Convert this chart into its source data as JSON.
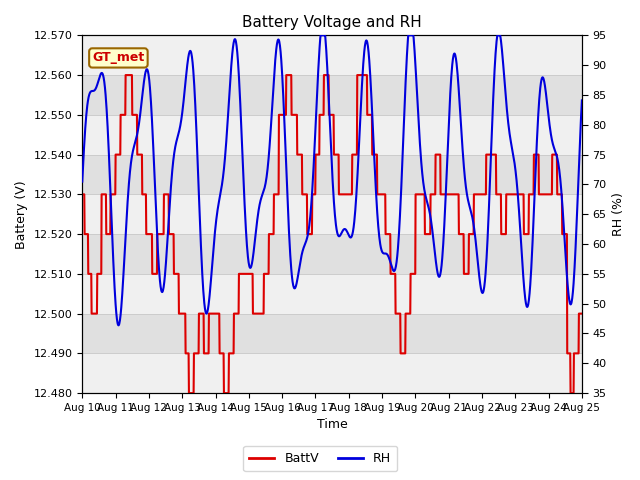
{
  "title": "Battery Voltage and RH",
  "xlabel": "Time",
  "ylabel_left": "Battery (V)",
  "ylabel_right": "RH (%)",
  "annotation_text": "GT_met",
  "annotation_color": "#cc0000",
  "annotation_bg": "#ffffcc",
  "annotation_border": "#996600",
  "ylim_left": [
    12.48,
    12.57
  ],
  "ylim_right": [
    35,
    95
  ],
  "yticks_left": [
    12.48,
    12.49,
    12.5,
    12.51,
    12.52,
    12.53,
    12.54,
    12.55,
    12.56,
    12.57
  ],
  "yticks_right": [
    35,
    40,
    45,
    50,
    55,
    60,
    65,
    70,
    75,
    80,
    85,
    90,
    95
  ],
  "xtick_labels": [
    "Aug 10",
    "Aug 11",
    "Aug 12",
    "Aug 13",
    "Aug 14",
    "Aug 15",
    "Aug 16",
    "Aug 17",
    "Aug 18",
    "Aug 19",
    "Aug 20",
    "Aug 21",
    "Aug 22",
    "Aug 23",
    "Aug 24",
    "Aug 25"
  ],
  "battv_color": "#dd0000",
  "rh_color": "#0000dd",
  "grid_color": "#cccccc",
  "bg_color": "#ffffff",
  "plot_bg_light": "#f0f0f0",
  "plot_bg_dark": "#e0e0e0",
  "legend_battv": "BattV",
  "legend_rh": "RH",
  "figsize": [
    6.4,
    4.8
  ],
  "dpi": 100
}
